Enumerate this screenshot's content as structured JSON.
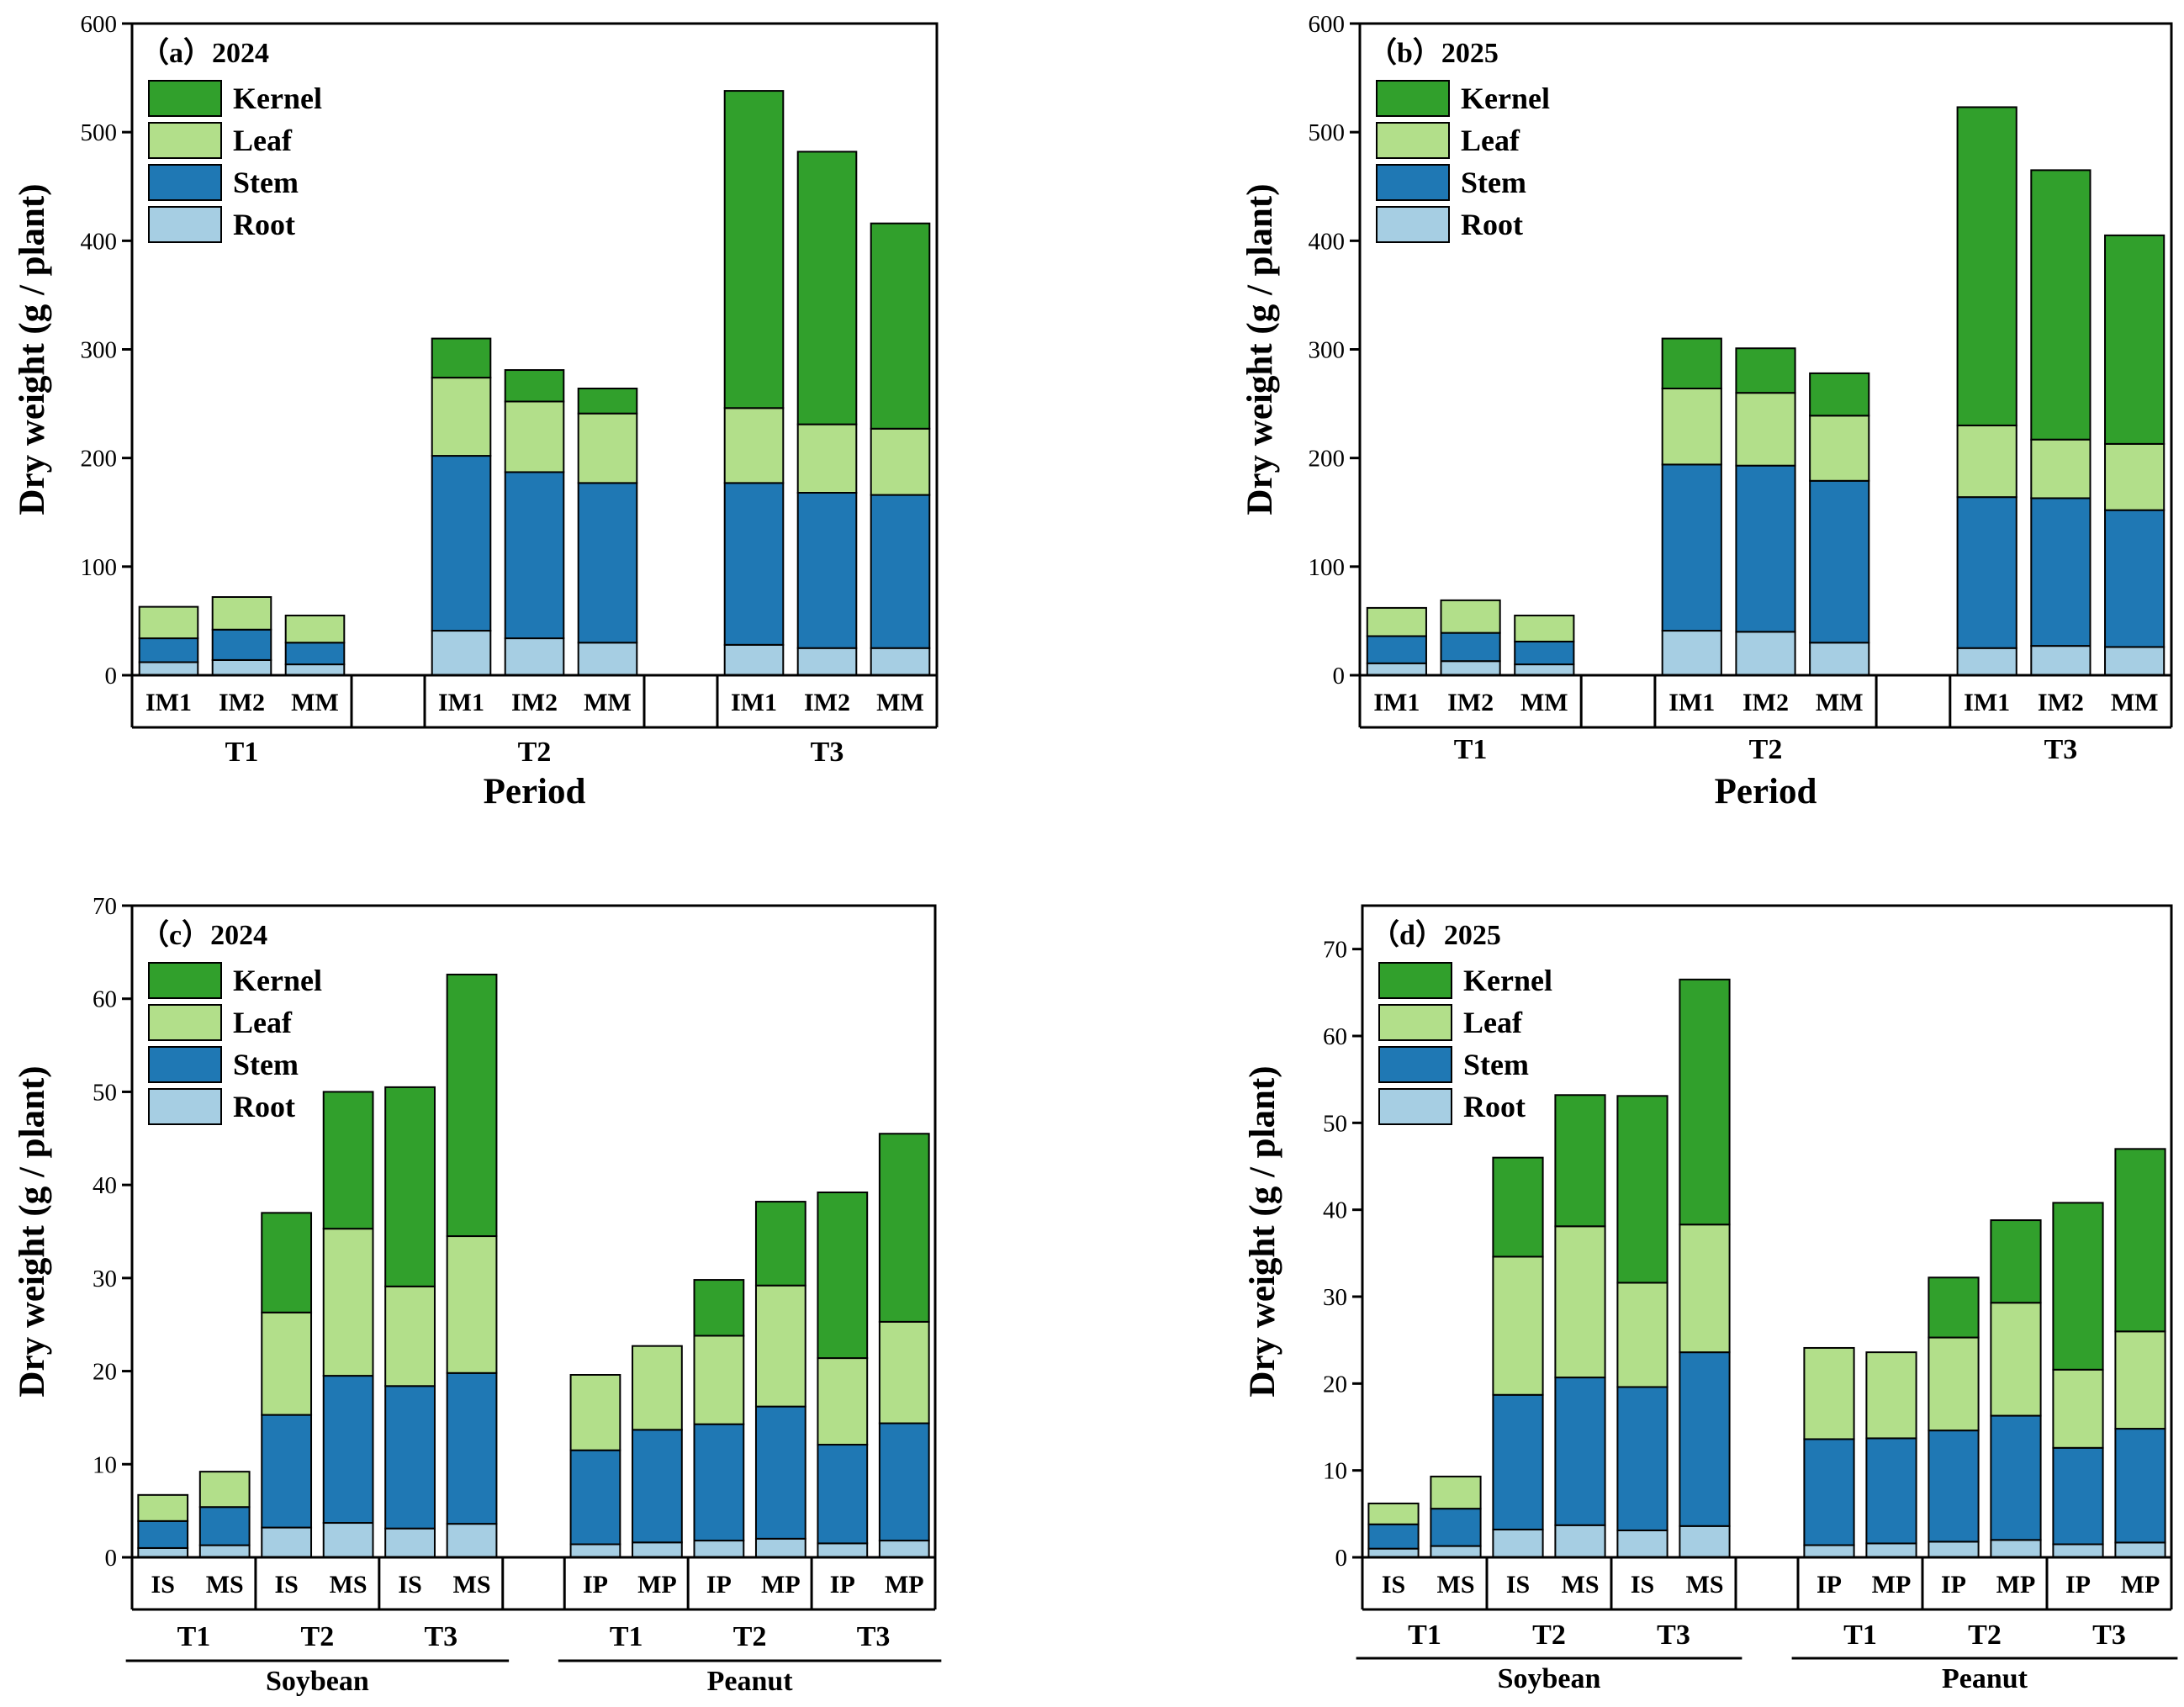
{
  "colors": {
    "Kernel": "#31a02c",
    "Leaf": "#b2df8a",
    "Stem": "#1f78b4",
    "Root": "#a6cee3"
  },
  "chart_data": [
    {
      "type": "bar",
      "stacked": true,
      "title": "（a）2024",
      "ylabel": "Dry weight (g / plant)",
      "xlabel": "Period",
      "ylim": [
        0,
        600
      ],
      "yticks": [
        0,
        100,
        200,
        300,
        400,
        500,
        600
      ],
      "legend_position": "top-left",
      "layer_order": [
        "Root",
        "Stem",
        "Leaf",
        "Kernel"
      ],
      "legend_entries": [
        "Kernel",
        "Leaf",
        "Stem",
        "Root"
      ],
      "groups": [
        {
          "name": "T1",
          "categories": [
            "IM1",
            "IM2",
            "MM"
          ],
          "bars": [
            {
              "label": "IM1",
              "Root": 12,
              "Stem": 22,
              "Leaf": 29,
              "Kernel": 0
            },
            {
              "label": "IM2",
              "Root": 14,
              "Stem": 28,
              "Leaf": 30,
              "Kernel": 0
            },
            {
              "label": "MM",
              "Root": 10,
              "Stem": 20,
              "Leaf": 25,
              "Kernel": 0
            }
          ]
        },
        {
          "name": "T2",
          "categories": [
            "IM1",
            "IM2",
            "MM"
          ],
          "bars": [
            {
              "label": "IM1",
              "Root": 41,
              "Stem": 161,
              "Leaf": 72,
              "Kernel": 36
            },
            {
              "label": "IM2",
              "Root": 34,
              "Stem": 153,
              "Leaf": 65,
              "Kernel": 29
            },
            {
              "label": "MM",
              "Root": 30,
              "Stem": 147,
              "Leaf": 64,
              "Kernel": 23
            }
          ]
        },
        {
          "name": "T3",
          "categories": [
            "IM1",
            "IM2",
            "MM"
          ],
          "bars": [
            {
              "label": "IM1",
              "Root": 28,
              "Stem": 149,
              "Leaf": 69,
              "Kernel": 292
            },
            {
              "label": "IM2",
              "Root": 25,
              "Stem": 143,
              "Leaf": 63,
              "Kernel": 251
            },
            {
              "label": "MM",
              "Root": 25,
              "Stem": 141,
              "Leaf": 61,
              "Kernel": 189
            }
          ]
        }
      ]
    },
    {
      "type": "bar",
      "stacked": true,
      "title": "（b）2025",
      "ylabel": "Dry weight (g / plant)",
      "xlabel": "Period",
      "ylim": [
        0,
        600
      ],
      "yticks": [
        0,
        100,
        200,
        300,
        400,
        500,
        600
      ],
      "legend_position": "top-left",
      "layer_order": [
        "Root",
        "Stem",
        "Leaf",
        "Kernel"
      ],
      "legend_entries": [
        "Kernel",
        "Leaf",
        "Stem",
        "Root"
      ],
      "groups": [
        {
          "name": "T1",
          "categories": [
            "IM1",
            "IM2",
            "MM"
          ],
          "bars": [
            {
              "label": "IM1",
              "Root": 11,
              "Stem": 25,
              "Leaf": 26,
              "Kernel": 0
            },
            {
              "label": "IM2",
              "Root": 13,
              "Stem": 26,
              "Leaf": 30,
              "Kernel": 0
            },
            {
              "label": "MM",
              "Root": 10,
              "Stem": 21,
              "Leaf": 24,
              "Kernel": 0
            }
          ]
        },
        {
          "name": "T2",
          "categories": [
            "IM1",
            "IM2",
            "MM"
          ],
          "bars": [
            {
              "label": "IM1",
              "Root": 41,
              "Stem": 153,
              "Leaf": 70,
              "Kernel": 46
            },
            {
              "label": "IM2",
              "Root": 40,
              "Stem": 153,
              "Leaf": 67,
              "Kernel": 41
            },
            {
              "label": "MM",
              "Root": 30,
              "Stem": 149,
              "Leaf": 60,
              "Kernel": 39
            }
          ]
        },
        {
          "name": "T3",
          "categories": [
            "IM1",
            "IM2",
            "MM"
          ],
          "bars": [
            {
              "label": "IM1",
              "Root": 25,
              "Stem": 139,
              "Leaf": 66,
              "Kernel": 293
            },
            {
              "label": "IM2",
              "Root": 27,
              "Stem": 136,
              "Leaf": 54,
              "Kernel": 248
            },
            {
              "label": "MM",
              "Root": 26,
              "Stem": 126,
              "Leaf": 61,
              "Kernel": 192
            }
          ]
        }
      ]
    },
    {
      "type": "bar",
      "stacked": true,
      "title": "（c）2024",
      "ylabel": "Dry weight (g / plant)",
      "ylim": [
        0,
        70
      ],
      "yticks": [
        0,
        10,
        20,
        30,
        40,
        50,
        60,
        70
      ],
      "legend_position": "top-left",
      "layer_order": [
        "Root",
        "Stem",
        "Leaf",
        "Kernel"
      ],
      "legend_entries": [
        "Kernel",
        "Leaf",
        "Stem",
        "Root"
      ],
      "crops": [
        {
          "name": "Soybean",
          "groups": [
            {
              "name": "T1",
              "categories": [
                "IS",
                "MS"
              ],
              "bars": [
                {
                  "label": "IS",
                  "Root": 1.0,
                  "Stem": 2.9,
                  "Leaf": 2.8,
                  "Kernel": 0
                },
                {
                  "label": "MS",
                  "Root": 1.3,
                  "Stem": 4.1,
                  "Leaf": 3.8,
                  "Kernel": 0
                }
              ]
            },
            {
              "name": "T2",
              "categories": [
                "IS",
                "MS"
              ],
              "bars": [
                {
                  "label": "IS",
                  "Root": 3.2,
                  "Stem": 12.1,
                  "Leaf": 11.0,
                  "Kernel": 10.7
                },
                {
                  "label": "MS",
                  "Root": 3.7,
                  "Stem": 15.8,
                  "Leaf": 15.8,
                  "Kernel": 14.7
                }
              ]
            },
            {
              "name": "T3",
              "categories": [
                "IS",
                "MS"
              ],
              "bars": [
                {
                  "label": "IS",
                  "Root": 3.1,
                  "Stem": 15.3,
                  "Leaf": 10.7,
                  "Kernel": 21.4
                },
                {
                  "label": "MS",
                  "Root": 3.6,
                  "Stem": 16.2,
                  "Leaf": 14.7,
                  "Kernel": 28.1
                }
              ]
            }
          ]
        },
        {
          "name": "Peanut",
          "groups": [
            {
              "name": "T1",
              "categories": [
                "IP",
                "MP"
              ],
              "bars": [
                {
                  "label": "IP",
                  "Root": 1.4,
                  "Stem": 10.1,
                  "Leaf": 8.1,
                  "Kernel": 0
                },
                {
                  "label": "MP",
                  "Root": 1.6,
                  "Stem": 12.1,
                  "Leaf": 9.0,
                  "Kernel": 0
                }
              ]
            },
            {
              "name": "T2",
              "categories": [
                "IP",
                "MP"
              ],
              "bars": [
                {
                  "label": "IP",
                  "Root": 1.8,
                  "Stem": 12.5,
                  "Leaf": 9.5,
                  "Kernel": 6.0
                },
                {
                  "label": "MP",
                  "Root": 2.0,
                  "Stem": 14.2,
                  "Leaf": 13.0,
                  "Kernel": 9.0
                }
              ]
            },
            {
              "name": "T3",
              "categories": [
                "IP",
                "MP"
              ],
              "bars": [
                {
                  "label": "IP",
                  "Root": 1.5,
                  "Stem": 10.6,
                  "Leaf": 9.3,
                  "Kernel": 17.8
                },
                {
                  "label": "MP",
                  "Root": 1.8,
                  "Stem": 12.6,
                  "Leaf": 10.9,
                  "Kernel": 20.2
                }
              ]
            }
          ]
        }
      ]
    },
    {
      "type": "bar",
      "stacked": true,
      "title": "（d）2025",
      "ylabel": "Dry weight (g / plant)",
      "ylim": [
        0,
        75
      ],
      "yticks": [
        0,
        10,
        20,
        30,
        40,
        50,
        60,
        70
      ],
      "legend_position": "top-left",
      "layer_order": [
        "Root",
        "Stem",
        "Leaf",
        "Kernel"
      ],
      "legend_entries": [
        "Kernel",
        "Leaf",
        "Stem",
        "Root"
      ],
      "crops": [
        {
          "name": "Soybean",
          "groups": [
            {
              "name": "T1",
              "categories": [
                "IS",
                "MS"
              ],
              "bars": [
                {
                  "label": "IS",
                  "Root": 1.0,
                  "Stem": 2.8,
                  "Leaf": 2.4,
                  "Kernel": 0
                },
                {
                  "label": "MS",
                  "Root": 1.3,
                  "Stem": 4.3,
                  "Leaf": 3.7,
                  "Kernel": 0
                }
              ]
            },
            {
              "name": "T2",
              "categories": [
                "IS",
                "MS"
              ],
              "bars": [
                {
                  "label": "IS",
                  "Root": 3.2,
                  "Stem": 15.5,
                  "Leaf": 15.9,
                  "Kernel": 11.4
                },
                {
                  "label": "MS",
                  "Root": 3.7,
                  "Stem": 17.0,
                  "Leaf": 17.4,
                  "Kernel": 15.1
                }
              ]
            },
            {
              "name": "T3",
              "categories": [
                "IS",
                "MS"
              ],
              "bars": [
                {
                  "label": "IS",
                  "Root": 3.1,
                  "Stem": 16.5,
                  "Leaf": 12.0,
                  "Kernel": 21.5
                },
                {
                  "label": "MS",
                  "Root": 3.6,
                  "Stem": 20.0,
                  "Leaf": 14.7,
                  "Kernel": 28.2
                }
              ]
            }
          ]
        },
        {
          "name": "Peanut",
          "groups": [
            {
              "name": "T1",
              "categories": [
                "IP",
                "MP"
              ],
              "bars": [
                {
                  "label": "IP",
                  "Root": 1.4,
                  "Stem": 12.2,
                  "Leaf": 10.5,
                  "Kernel": 0
                },
                {
                  "label": "MP",
                  "Root": 1.6,
                  "Stem": 12.1,
                  "Leaf": 9.9,
                  "Kernel": 0
                }
              ]
            },
            {
              "name": "T2",
              "categories": [
                "IP",
                "MP"
              ],
              "bars": [
                {
                  "label": "IP",
                  "Root": 1.8,
                  "Stem": 12.8,
                  "Leaf": 10.7,
                  "Kernel": 6.9
                },
                {
                  "label": "MP",
                  "Root": 2.0,
                  "Stem": 14.3,
                  "Leaf": 13.0,
                  "Kernel": 9.5
                }
              ]
            },
            {
              "name": "T3",
              "categories": [
                "IP",
                "MP"
              ],
              "bars": [
                {
                  "label": "IP",
                  "Root": 1.5,
                  "Stem": 11.1,
                  "Leaf": 9.0,
                  "Kernel": 19.2
                },
                {
                  "label": "MP",
                  "Root": 1.7,
                  "Stem": 13.1,
                  "Leaf": 11.2,
                  "Kernel": 21.0
                }
              ]
            }
          ]
        }
      ]
    }
  ]
}
